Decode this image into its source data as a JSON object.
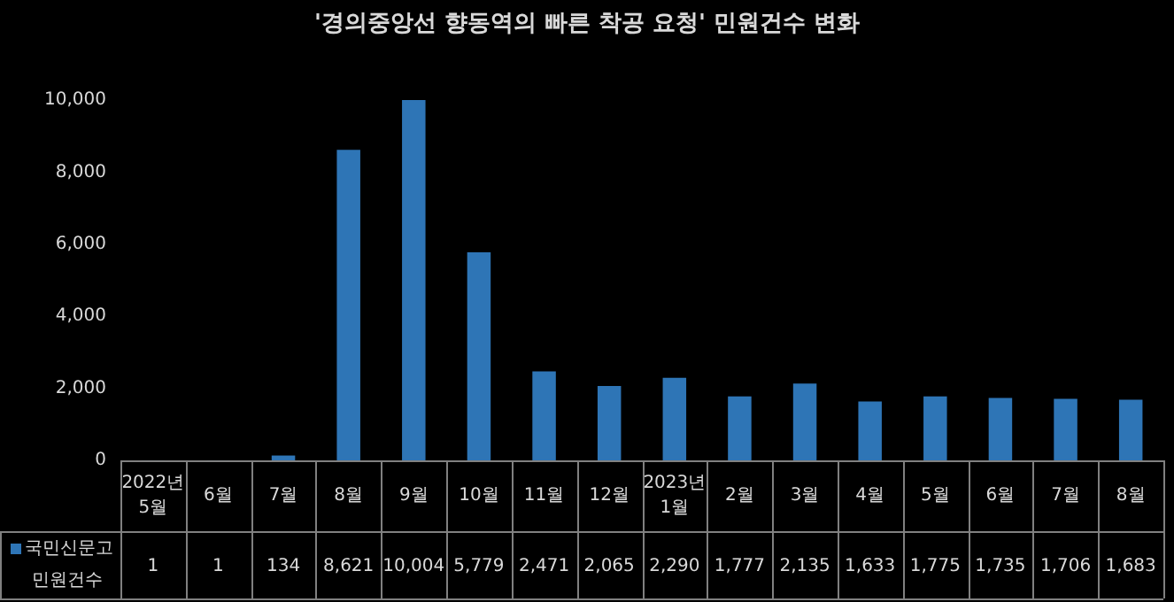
{
  "chart_data": {
    "type": "bar",
    "title": "'경의중앙선 향동역의 빠른 착공 요청' 민원건수 변화",
    "categories": [
      "2022년 5월",
      "6월",
      "7월",
      "8월",
      "9월",
      "10월",
      "11월",
      "12월",
      "2023년 1월",
      "2월",
      "3월",
      "4월",
      "5월",
      "6월",
      "7월",
      "8월"
    ],
    "series": [
      {
        "name": "국민신문고 민원건수",
        "color": "#2e75b6",
        "values": [
          1,
          1,
          134,
          8621,
          10004,
          5779,
          2471,
          2065,
          2290,
          1777,
          2135,
          1633,
          1775,
          1735,
          1706,
          1683
        ],
        "value_labels": [
          "1",
          "1",
          "134",
          "8,621",
          "10,004",
          "5,779",
          "2,471",
          "2,065",
          "2,290",
          "1,777",
          "2,135",
          "1,633",
          "1,775",
          "1,735",
          "1,706",
          "1,683"
        ]
      }
    ],
    "ylim": [
      0,
      10050
    ],
    "yticks": [
      {
        "value": 0,
        "label": "0"
      },
      {
        "value": 2000,
        "label": "2,000"
      },
      {
        "value": 4000,
        "label": "4,000"
      },
      {
        "value": 6000,
        "label": "6,000"
      },
      {
        "value": 8000,
        "label": "8,000"
      },
      {
        "value": 10000,
        "label": "10,000"
      }
    ],
    "grid": false,
    "legend": "bottom left"
  }
}
